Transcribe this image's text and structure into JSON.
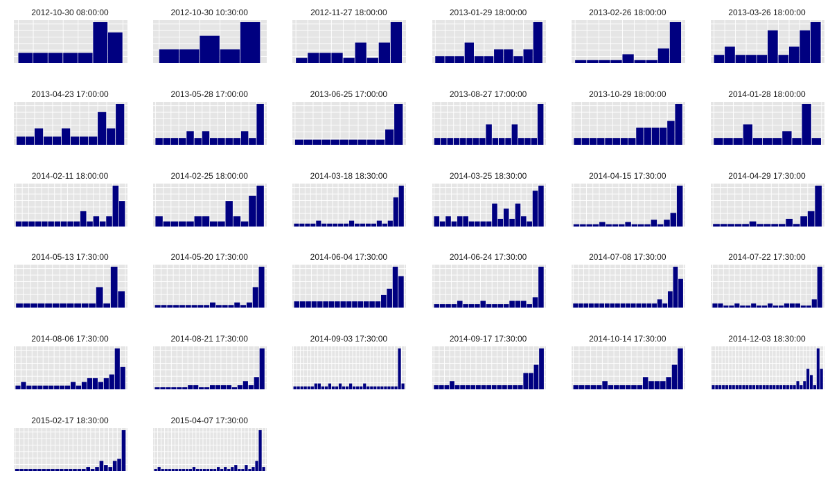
{
  "colors": {
    "panel_bg": "#e5e5e5",
    "grid": "#ffffff",
    "bar": "#000080"
  },
  "chart_data": {
    "type": "bar",
    "facet": "small-multiples",
    "grid": true,
    "axes": "hidden",
    "panels": [
      {
        "title": "2012-10-30 08:00:00",
        "values": [
          1,
          1,
          1,
          1,
          1,
          4,
          3
        ]
      },
      {
        "title": "2012-10-30 10:30:00",
        "values": [
          1,
          1,
          2,
          1,
          3
        ]
      },
      {
        "title": "2012-11-27 18:00:00",
        "values": [
          1,
          2,
          2,
          2,
          1,
          4,
          1,
          4,
          8
        ]
      },
      {
        "title": "2013-01-29 18:00:00",
        "values": [
          1,
          1,
          1,
          3,
          1,
          1,
          2,
          2,
          1,
          2,
          6
        ]
      },
      {
        "title": "2013-02-26 18:00:00",
        "values": [
          1,
          1,
          1,
          1,
          3,
          1,
          1,
          5,
          14
        ]
      },
      {
        "title": "2013-03-26 18:00:00",
        "values": [
          1,
          2,
          1,
          1,
          1,
          4,
          1,
          2,
          4,
          5
        ]
      },
      {
        "title": "2013-04-23 17:00:00",
        "values": [
          1,
          1,
          2,
          1,
          1,
          2,
          1,
          1,
          1,
          4,
          2,
          5
        ]
      },
      {
        "title": "2013-05-28 17:00:00",
        "values": [
          1,
          1,
          1,
          1,
          2,
          1,
          2,
          1,
          1,
          1,
          1,
          2,
          1,
          6
        ]
      },
      {
        "title": "2013-06-25 17:00:00",
        "values": [
          1,
          1,
          1,
          1,
          1,
          1,
          1,
          1,
          1,
          1,
          3,
          8
        ]
      },
      {
        "title": "2013-08-27 17:00:00",
        "values": [
          1,
          1,
          1,
          1,
          1,
          1,
          1,
          1,
          3,
          1,
          1,
          1,
          3,
          1,
          1,
          1,
          6
        ]
      },
      {
        "title": "2013-10-29 18:00:00",
        "values": [
          1,
          1,
          1,
          1,
          1,
          1,
          1,
          1,
          2.5,
          2.5,
          2.5,
          2.5,
          3.5,
          6
        ]
      },
      {
        "title": "2014-01-28 18:00:00",
        "values": [
          1,
          1,
          1,
          3,
          1,
          1,
          1,
          2,
          1,
          6,
          1
        ]
      },
      {
        "title": "2014-02-11 18:00:00",
        "values": [
          1,
          1,
          1,
          1,
          1,
          1,
          1,
          1,
          1,
          1,
          3,
          1,
          2,
          1,
          2,
          8,
          5
        ]
      },
      {
        "title": "2014-02-25 18:00:00",
        "values": [
          2,
          1,
          1,
          1,
          1,
          2,
          2,
          1,
          1,
          5,
          2,
          1,
          6,
          8
        ]
      },
      {
        "title": "2014-03-18 18:30:00",
        "values": [
          1,
          1,
          1,
          1,
          2,
          1,
          1,
          1,
          1,
          1,
          2,
          1,
          1,
          1,
          1,
          2,
          1,
          2,
          10,
          14
        ]
      },
      {
        "title": "2014-03-25 18:30:00",
        "values": [
          2,
          1,
          2,
          1,
          2,
          2,
          1,
          1,
          1,
          1,
          4.5,
          1.5,
          3.5,
          1.5,
          4.5,
          2,
          1,
          7,
          8
        ]
      },
      {
        "title": "2014-04-15 17:30:00",
        "values": [
          1,
          1,
          1,
          1,
          2,
          1,
          1,
          1,
          2,
          1,
          1,
          1,
          3,
          1,
          3,
          6,
          18
        ]
      },
      {
        "title": "2014-04-29 17:30:00",
        "values": [
          1,
          1,
          1,
          1,
          1,
          2,
          1,
          1,
          1,
          1,
          3,
          1,
          4,
          6,
          16
        ]
      },
      {
        "title": "2014-05-13 17:30:00",
        "values": [
          1,
          1,
          1,
          1,
          1,
          1,
          1,
          1,
          1,
          1,
          1,
          5,
          1,
          10,
          4
        ]
      },
      {
        "title": "2014-05-20 17:30:00",
        "values": [
          1,
          1,
          1,
          1,
          1,
          1,
          1,
          1,
          1,
          2,
          1,
          1,
          1,
          2,
          1,
          2,
          8,
          16
        ]
      },
      {
        "title": "2014-06-04 17:30:00",
        "values": [
          2,
          2,
          2,
          2,
          2,
          2,
          2,
          2,
          2,
          2,
          2,
          2,
          2,
          2,
          2,
          4,
          6,
          13,
          10
        ]
      },
      {
        "title": "2014-06-24 17:30:00",
        "values": [
          1,
          1,
          1,
          1,
          2,
          1,
          1,
          1,
          2,
          1,
          1,
          1,
          1,
          2,
          2,
          2,
          1,
          3,
          12
        ]
      },
      {
        "title": "2014-07-08 17:30:00",
        "values": [
          1,
          1,
          1,
          1,
          1,
          1,
          1,
          1,
          1,
          1,
          1,
          1,
          1,
          1,
          1,
          1,
          2,
          1,
          4,
          10,
          7
        ]
      },
      {
        "title": "2014-07-22 17:30:00",
        "values": [
          1,
          1,
          0.5,
          0.5,
          1,
          0.5,
          0.5,
          1,
          0.5,
          0.5,
          1,
          0.5,
          0.5,
          1,
          1,
          1,
          0.5,
          0.5,
          2,
          10
        ]
      },
      {
        "title": "2014-08-06 17:30:00",
        "values": [
          1,
          2,
          1,
          1,
          1,
          1,
          1,
          1,
          1,
          1,
          2,
          1,
          2,
          3,
          3,
          2,
          3,
          4,
          11,
          6
        ]
      },
      {
        "title": "2014-08-21 17:30:00",
        "values": [
          0.5,
          0.5,
          0.5,
          0.5,
          0.5,
          0.5,
          1,
          1,
          0.5,
          0.5,
          1,
          1,
          1,
          1,
          0.5,
          1,
          2,
          1,
          3,
          10
        ]
      },
      {
        "title": "2014-09-03 17:30:00",
        "values": [
          1,
          1,
          1,
          1,
          1,
          1,
          2,
          2,
          1,
          1,
          2,
          1,
          1,
          2,
          1,
          1,
          2,
          1,
          1,
          1,
          2,
          1,
          1,
          1,
          1,
          1,
          1,
          1,
          1,
          1,
          14,
          2
        ]
      },
      {
        "title": "2014-09-17 17:30:00",
        "values": [
          1,
          1,
          1,
          2,
          1,
          1,
          1,
          1,
          1,
          1,
          1,
          1,
          1,
          1,
          1,
          1,
          1,
          4,
          4,
          6,
          10
        ]
      },
      {
        "title": "2014-10-14 17:30:00",
        "values": [
          1,
          1,
          1,
          1,
          1,
          2,
          1,
          1,
          1,
          1,
          1,
          1,
          3,
          2,
          2,
          2,
          3,
          6,
          10
        ]
      },
      {
        "title": "2014-12-03 18:30:00",
        "values": [
          1,
          1,
          1,
          1,
          1,
          1,
          1,
          1,
          1,
          1,
          1,
          1,
          1,
          1,
          1,
          1,
          1,
          1,
          1,
          1,
          1,
          1,
          1,
          1,
          1,
          2,
          1,
          2,
          5,
          3.5,
          1,
          10,
          5
        ]
      },
      {
        "title": "2015-02-17 18:30:00",
        "values": [
          0.5,
          0.5,
          0.5,
          0.5,
          0.5,
          0.5,
          0.5,
          0.5,
          0.5,
          0.5,
          0.5,
          0.5,
          0.5,
          0.5,
          0.5,
          0.5,
          1,
          0.5,
          1,
          2.5,
          1.5,
          1,
          2.5,
          3,
          10
        ]
      },
      {
        "title": "2015-04-07 17:30:00",
        "values": [
          0.5,
          1,
          0.5,
          0.5,
          0.5,
          0.5,
          0.5,
          0.5,
          0.5,
          0.5,
          0.5,
          1,
          0.5,
          0.5,
          0.5,
          0.5,
          0.5,
          0.5,
          1,
          0.5,
          1,
          0.5,
          1,
          1.5,
          0.5,
          0.5,
          1.5,
          0.5,
          1,
          2.5,
          10,
          1
        ]
      }
    ]
  }
}
